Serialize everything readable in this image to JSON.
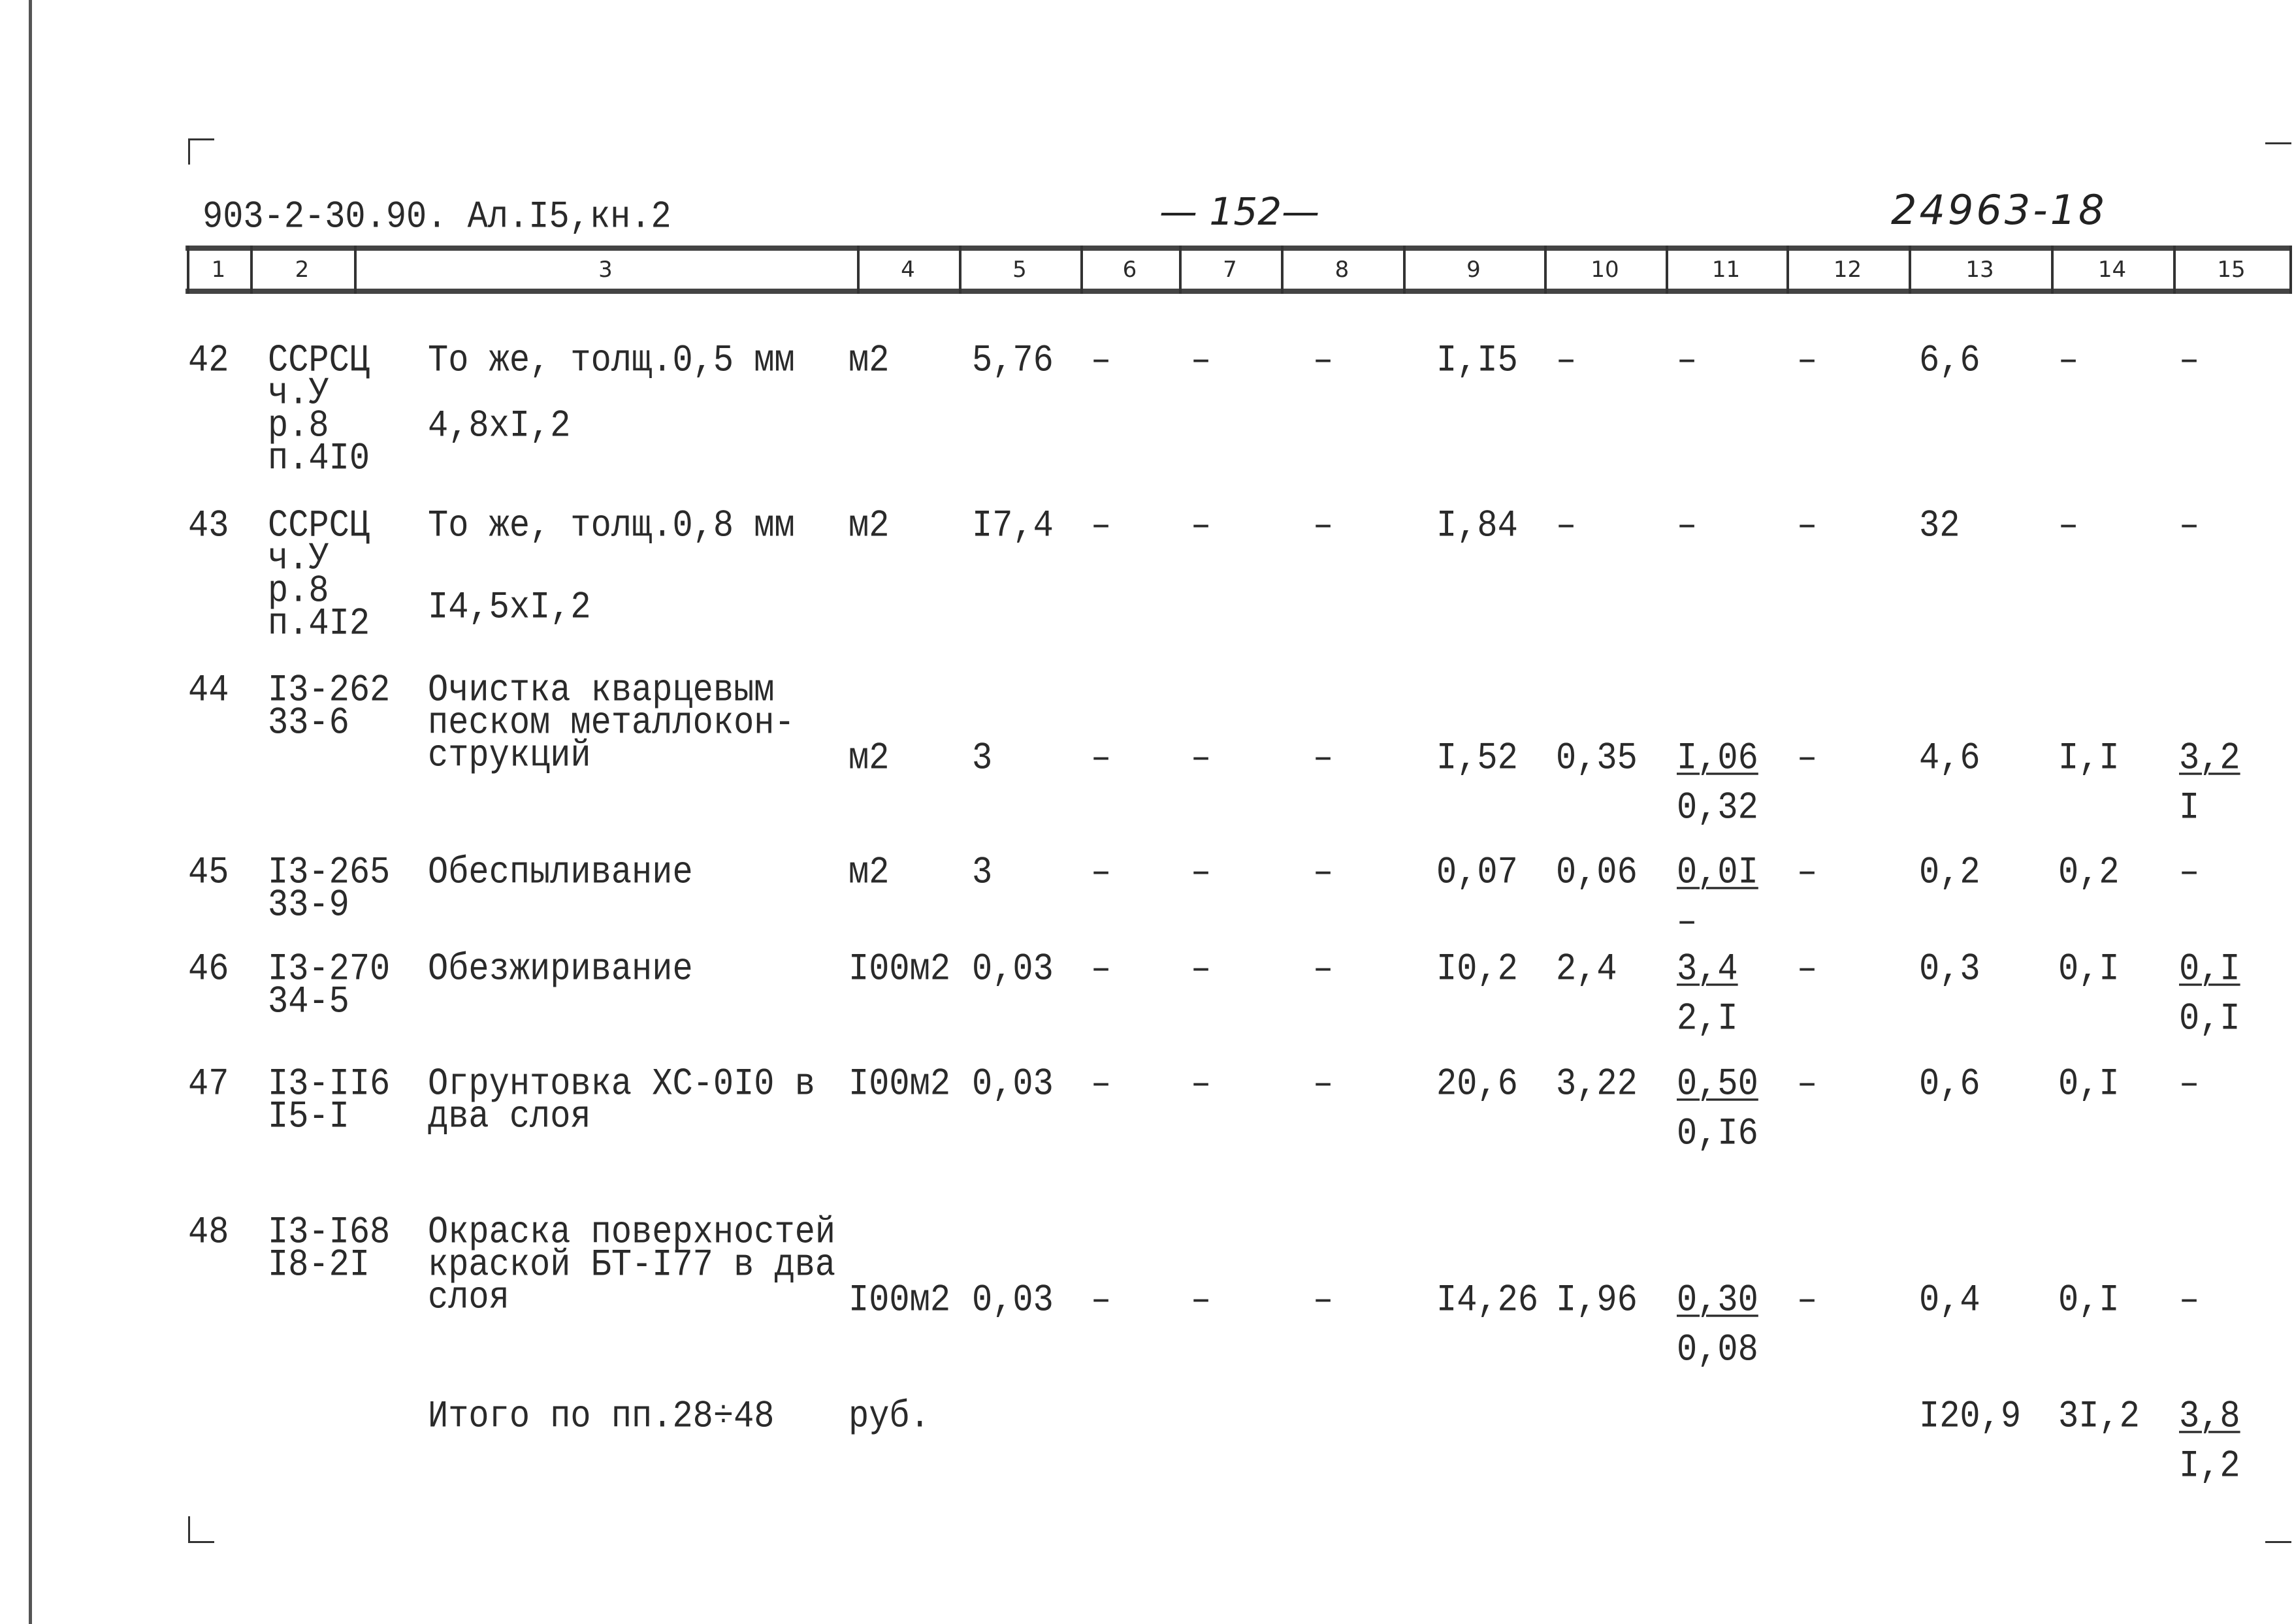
{
  "header": {
    "doc_code": "903-2-30.90. Ал.I5,кн.2",
    "page_number": "— 152—",
    "doc_number": "24963-18",
    "column_numbers": [
      "1",
      "2",
      "3",
      "4",
      "5",
      "6",
      "7",
      "8",
      "9",
      "10",
      "11",
      "12",
      "13",
      "14",
      "15"
    ]
  },
  "rows": [
    {
      "no": "42",
      "code": [
        "ССРСЦ",
        "ч.У",
        "р.8",
        "п.4I0"
      ],
      "desc": [
        "То же, толщ.0,5 мм"
      ],
      "dims": "4,8xI,2",
      "unit": "м2",
      "values": [
        "5,76",
        "–",
        "–",
        "–",
        "I,I5",
        "–",
        "–",
        "–",
        "6,6",
        "–",
        "–"
      ]
    },
    {
      "no": "43",
      "code": [
        "ССРСЦ",
        "ч.У",
        "р.8",
        "п.4I2"
      ],
      "desc": [
        "То же, толщ.0,8 мм"
      ],
      "dims": "I4,5xI,2",
      "unit": "м2",
      "values": [
        "I7,4",
        "–",
        "–",
        "–",
        "I,84",
        "–",
        "–",
        "–",
        "32",
        "–",
        "–"
      ]
    },
    {
      "no": "44",
      "code": [
        "I3-262",
        "33-6"
      ],
      "desc": [
        "Очистка кварцевым",
        "песком металлокон-",
        "струкций"
      ],
      "unit": "м2",
      "values": [
        "3",
        "–",
        "–",
        "–",
        "I,52",
        "0,35",
        {
          "top": "I,06",
          "bottom": "0,32"
        },
        "–",
        "4,6",
        "I,I",
        {
          "top": "3,2",
          "bottom": "I"
        }
      ]
    },
    {
      "no": "45",
      "code": [
        "I3-265",
        "33-9"
      ],
      "desc": [
        "Обеспыливание"
      ],
      "unit": "м2",
      "values": [
        "3",
        "–",
        "–",
        "–",
        "0,07",
        "0,06",
        {
          "top": "0,0I",
          "bottom": "–"
        },
        "–",
        "0,2",
        "0,2",
        "–"
      ]
    },
    {
      "no": "46",
      "code": [
        "I3-270",
        "34-5"
      ],
      "desc": [
        "Обезжиривание"
      ],
      "unit": "I00м2",
      "values": [
        "0,03",
        "–",
        "–",
        "–",
        "I0,2",
        "2,4",
        {
          "top": "3,4",
          "bottom": "2,I"
        },
        "–",
        "0,3",
        "0,I",
        {
          "top": "0,I",
          "bottom": "0,I"
        }
      ]
    },
    {
      "no": "47",
      "code": [
        "I3-II6",
        "I5-I"
      ],
      "desc": [
        "Огрунтовка ХС-0I0 в",
        "два слоя"
      ],
      "unit": "I00м2",
      "values": [
        "0,03",
        "–",
        "–",
        "–",
        "20,6",
        "3,22",
        {
          "top": "0,50",
          "bottom": "0,I6"
        },
        "–",
        "0,6",
        "0,I",
        "–"
      ]
    },
    {
      "no": "48",
      "code": [
        "I3-I68",
        "I8-2I"
      ],
      "desc": [
        "Окраска поверхностей",
        "краской БТ-I77 в два",
        "слоя"
      ],
      "unit": "I00м2",
      "values": [
        "0,03",
        "–",
        "–",
        "–",
        "I4,26",
        "I,96",
        {
          "top": "0,30",
          "bottom": "0,08"
        },
        "–",
        "0,4",
        "0,I",
        "–"
      ]
    }
  ],
  "total": {
    "label": "Итого по пп.28÷48",
    "unit": "руб.",
    "col13": "I20,9",
    "col14": "3I,2",
    "col15": {
      "top": "3,8",
      "bottom": "I,2"
    }
  }
}
